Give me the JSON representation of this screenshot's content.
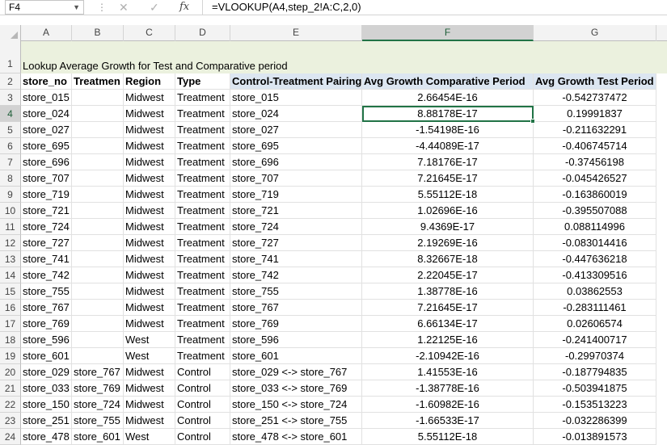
{
  "formula_bar": {
    "name_box": "F4",
    "cancel_icon": "✕",
    "enter_icon": "✓",
    "fx_label": "fx",
    "formula": "=VLOOKUP(A4,step_2!A:C,2,0)"
  },
  "columns": [
    "A",
    "B",
    "C",
    "D",
    "E",
    "F",
    "G"
  ],
  "title_row": {
    "row": "1",
    "text": "Lookup Average Growth for Test and Comparative period"
  },
  "header_row": {
    "row": "2",
    "cells": [
      "store_no",
      "Treatmen",
      "Region",
      "Type",
      "Control-Treatment Pairing",
      "Avg Growth Comparative Period",
      "Avg Growth Test Period"
    ]
  },
  "rows": [
    {
      "row": "3",
      "cells": [
        "store_015",
        "",
        "Midwest",
        "Treatment",
        "store_015",
        "2.66454E-16",
        "-0.542737472"
      ]
    },
    {
      "row": "4",
      "cells": [
        "store_024",
        "",
        "Midwest",
        "Treatment",
        "store_024",
        "8.88178E-17",
        "0.19991837"
      ]
    },
    {
      "row": "5",
      "cells": [
        "store_027",
        "",
        "Midwest",
        "Treatment",
        "store_027",
        "-1.54198E-16",
        "-0.211632291"
      ]
    },
    {
      "row": "6",
      "cells": [
        "store_695",
        "",
        "Midwest",
        "Treatment",
        "store_695",
        "-4.44089E-17",
        "-0.406745714"
      ]
    },
    {
      "row": "7",
      "cells": [
        "store_696",
        "",
        "Midwest",
        "Treatment",
        "store_696",
        "7.18176E-17",
        "-0.37456198"
      ]
    },
    {
      "row": "8",
      "cells": [
        "store_707",
        "",
        "Midwest",
        "Treatment",
        "store_707",
        "7.21645E-17",
        "-0.045426527"
      ]
    },
    {
      "row": "9",
      "cells": [
        "store_719",
        "",
        "Midwest",
        "Treatment",
        "store_719",
        "5.55112E-18",
        "-0.163860019"
      ]
    },
    {
      "row": "10",
      "cells": [
        "store_721",
        "",
        "Midwest",
        "Treatment",
        "store_721",
        "1.02696E-16",
        "-0.395507088"
      ]
    },
    {
      "row": "11",
      "cells": [
        "store_724",
        "",
        "Midwest",
        "Treatment",
        "store_724",
        "9.4369E-17",
        "0.088114996"
      ]
    },
    {
      "row": "12",
      "cells": [
        "store_727",
        "",
        "Midwest",
        "Treatment",
        "store_727",
        "2.19269E-16",
        "-0.083014416"
      ]
    },
    {
      "row": "13",
      "cells": [
        "store_741",
        "",
        "Midwest",
        "Treatment",
        "store_741",
        "8.32667E-18",
        "-0.447636218"
      ]
    },
    {
      "row": "14",
      "cells": [
        "store_742",
        "",
        "Midwest",
        "Treatment",
        "store_742",
        "2.22045E-17",
        "-0.413309516"
      ]
    },
    {
      "row": "15",
      "cells": [
        "store_755",
        "",
        "Midwest",
        "Treatment",
        "store_755",
        "1.38778E-16",
        "0.03862553"
      ]
    },
    {
      "row": "16",
      "cells": [
        "store_767",
        "",
        "Midwest",
        "Treatment",
        "store_767",
        "7.21645E-17",
        "-0.283111461"
      ]
    },
    {
      "row": "17",
      "cells": [
        "store_769",
        "",
        "Midwest",
        "Treatment",
        "store_769",
        "6.66134E-17",
        "0.02606574"
      ]
    },
    {
      "row": "18",
      "cells": [
        "store_596",
        "",
        "West",
        "Treatment",
        "store_596",
        "1.22125E-16",
        "-0.241400717"
      ]
    },
    {
      "row": "19",
      "cells": [
        "store_601",
        "",
        "West",
        "Treatment",
        "store_601",
        "-2.10942E-16",
        "-0.29970374"
      ]
    },
    {
      "row": "20",
      "cells": [
        "store_029",
        "store_767",
        "Midwest",
        "Control",
        "store_029 <-> store_767",
        "1.41553E-16",
        "-0.187794835"
      ]
    },
    {
      "row": "21",
      "cells": [
        "store_033",
        "store_769",
        "Midwest",
        "Control",
        "store_033 <-> store_769",
        "-1.38778E-16",
        "-0.503941875"
      ]
    },
    {
      "row": "22",
      "cells": [
        "store_150",
        "store_724",
        "Midwest",
        "Control",
        "store_150 <-> store_724",
        "-1.60982E-16",
        "-0.153513223"
      ]
    },
    {
      "row": "23",
      "cells": [
        "store_251",
        "store_755",
        "Midwest",
        "Control",
        "store_251 <-> store_755",
        "-1.66533E-17",
        "-0.032286399"
      ]
    },
    {
      "row": "24",
      "cells": [
        "store_478",
        "store_601",
        "West",
        "Control",
        "store_478 <-> store_601",
        "5.55112E-18",
        "-0.013891573"
      ]
    }
  ],
  "selection": {
    "cell": "F4",
    "column": "F",
    "row": "4"
  },
  "colors": {
    "accent": "#217346",
    "title_band": "#ebf1de",
    "header_highlight": "#dce6f1"
  }
}
